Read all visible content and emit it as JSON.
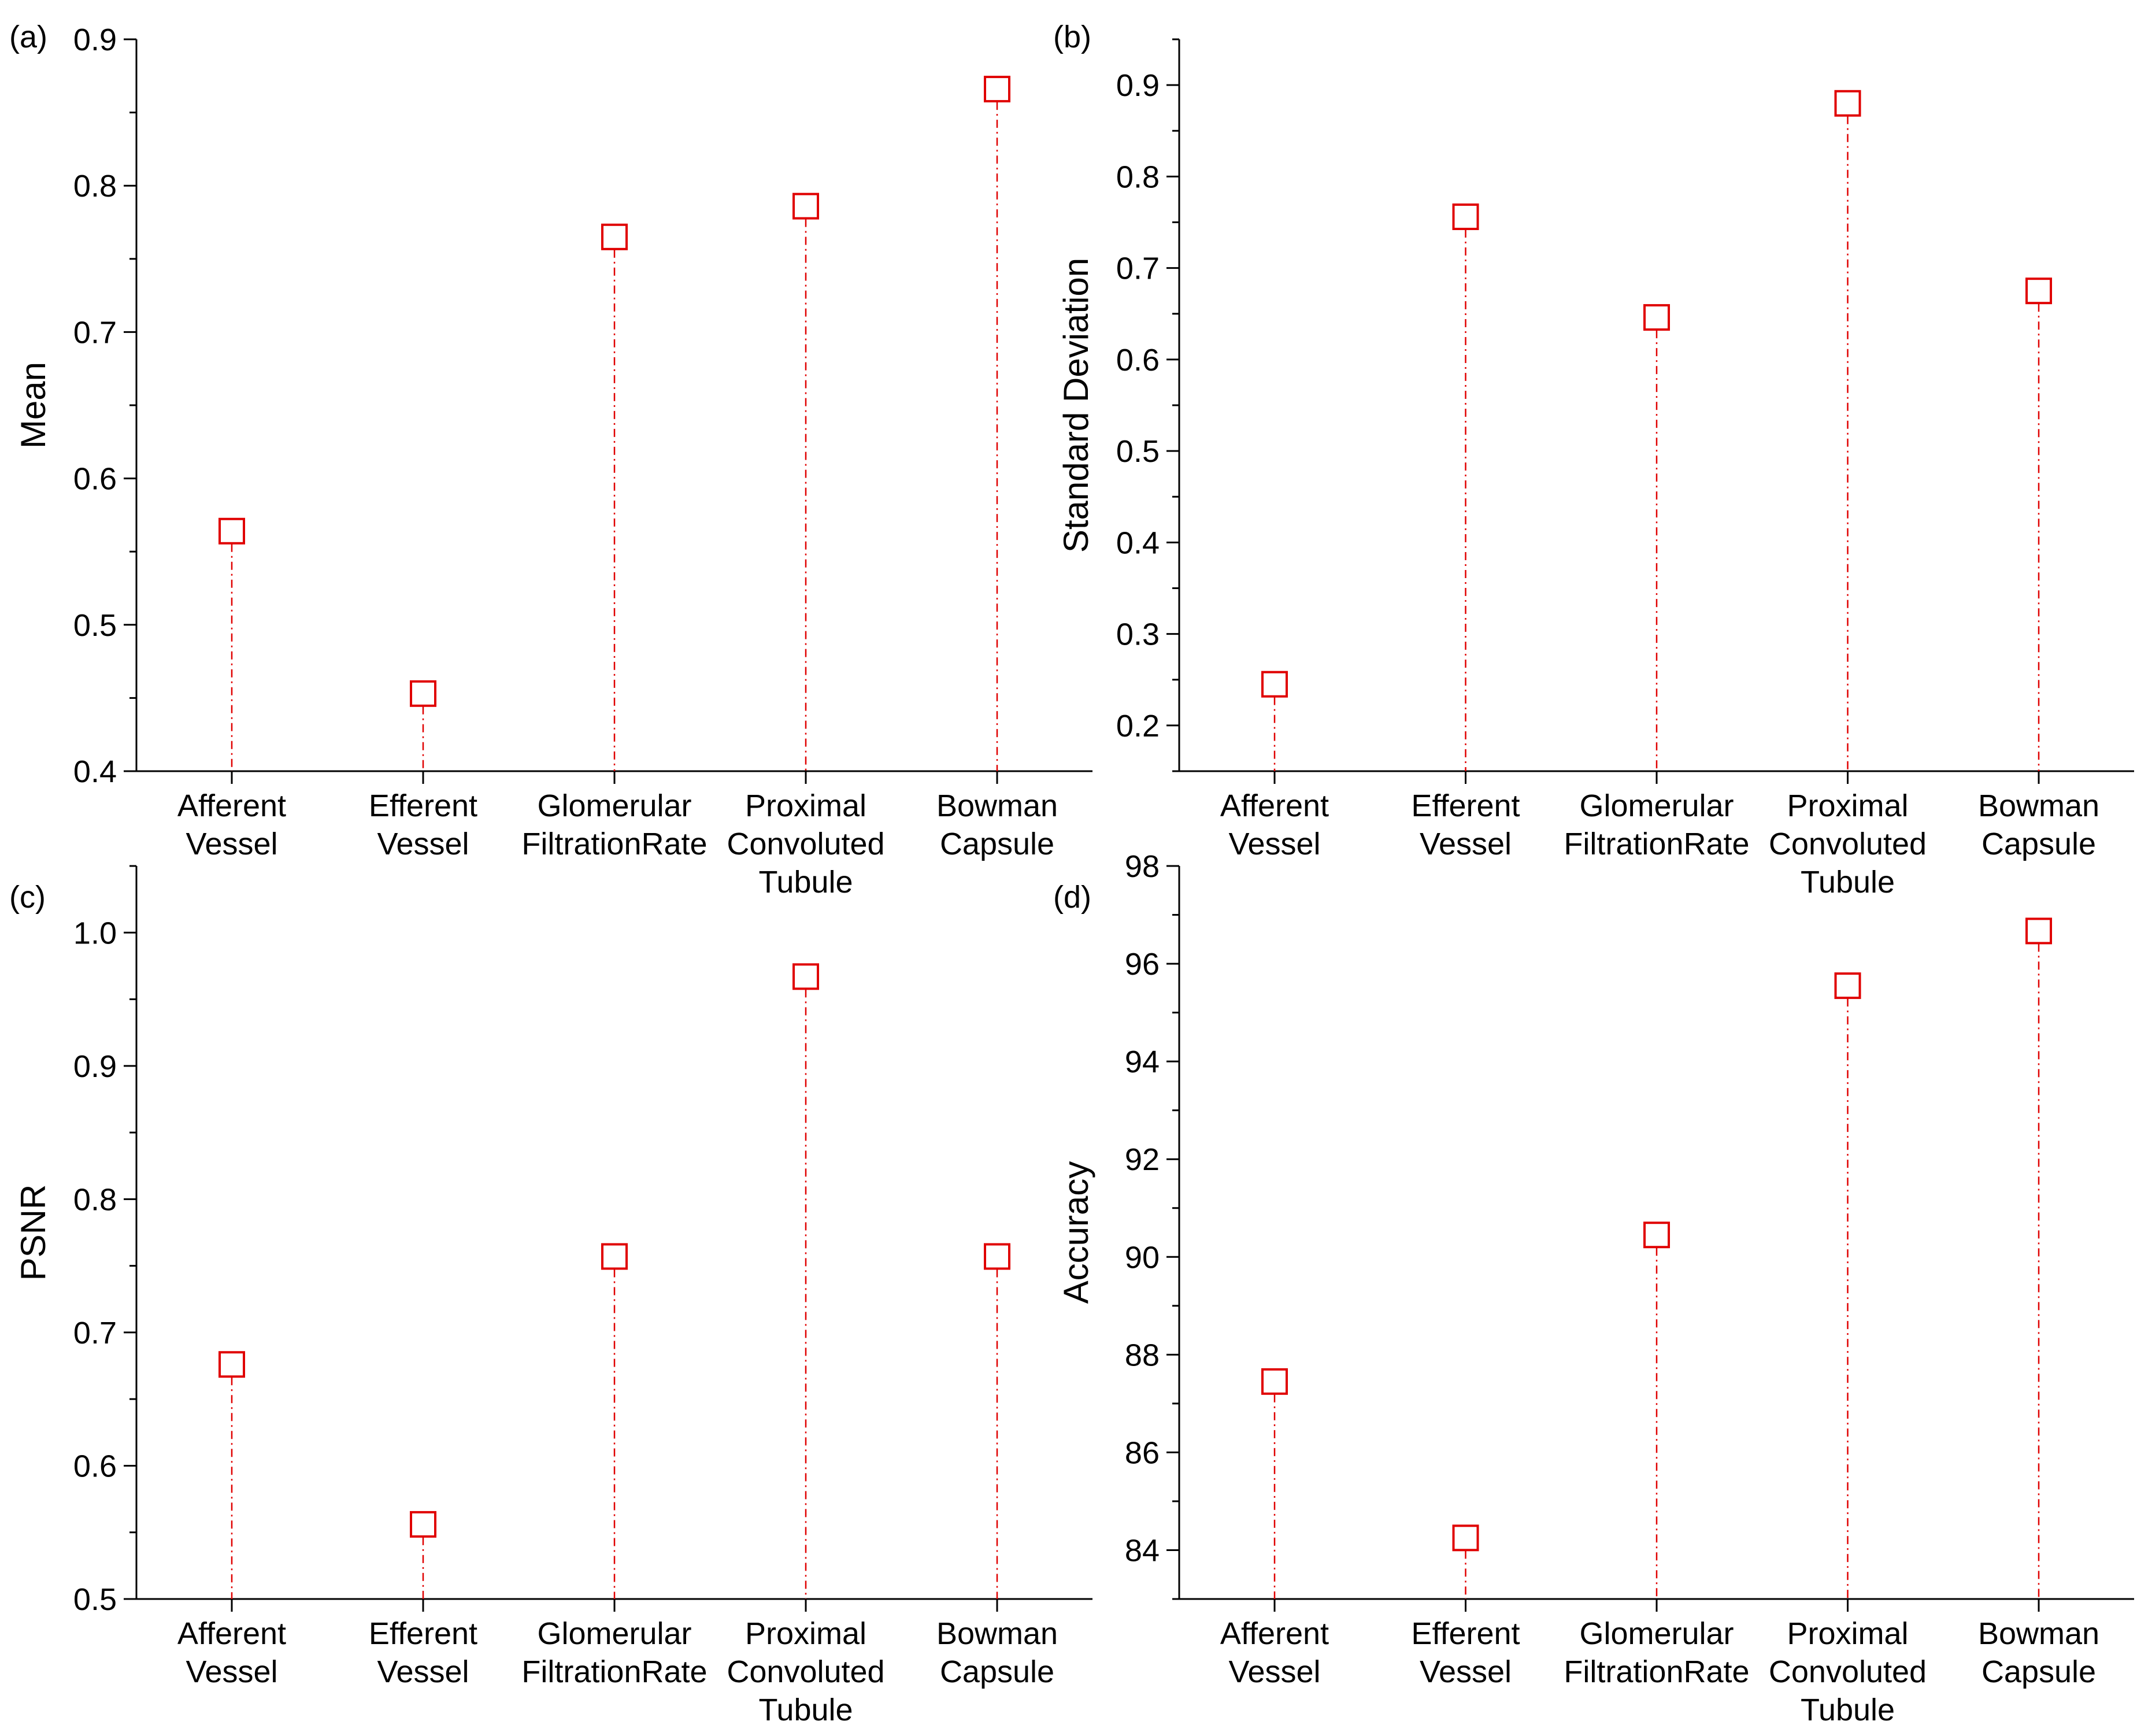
{
  "colors": {
    "marker": "#e00000",
    "axis": "#000000",
    "background": "#ffffff"
  },
  "chart_data": [
    {
      "panel_label": "(a)",
      "type": "scatter",
      "marker": "open-square",
      "drop_lines": "dash-dot",
      "title": "",
      "xlabel": "",
      "ylabel": "Mean",
      "ylim": [
        0.4,
        0.9
      ],
      "yticks": [
        0.4,
        0.5,
        0.6,
        0.7,
        0.8,
        0.9
      ],
      "ytick_labels": [
        "0.4",
        "0.5",
        "0.6",
        "0.7",
        "0.8",
        "0.9"
      ],
      "categories": [
        [
          "Afferent",
          "Vessel"
        ],
        [
          "Efferent",
          "Vessel"
        ],
        [
          "Glomerular",
          "FiltrationRate"
        ],
        [
          "Proximal",
          "Convoluted",
          "Tubule"
        ],
        [
          "Bowman",
          "Capsule"
        ]
      ],
      "values": [
        0.564,
        0.453,
        0.765,
        0.786,
        0.866
      ]
    },
    {
      "panel_label": "(b)",
      "type": "scatter",
      "marker": "open-square",
      "drop_lines": "dash-dot",
      "title": "",
      "xlabel": "",
      "ylabel": "Standard Deviation",
      "ylim": [
        0.15,
        0.95
      ],
      "yticks": [
        0.2,
        0.3,
        0.4,
        0.5,
        0.6,
        0.7,
        0.8,
        0.9
      ],
      "ytick_labels": [
        "0.2",
        "0.3",
        "0.4",
        "0.5",
        "0.6",
        "0.7",
        "0.8",
        "0.9"
      ],
      "categories": [
        [
          "Afferent",
          "Vessel"
        ],
        [
          "Efferent",
          "Vessel"
        ],
        [
          "Glomerular",
          "FiltrationRate"
        ],
        [
          "Proximal",
          "Convoluted",
          "Tubule"
        ],
        [
          "Bowman",
          "Capsule"
        ]
      ],
      "values": [
        0.245,
        0.756,
        0.646,
        0.88,
        0.675
      ]
    },
    {
      "panel_label": "(c)",
      "type": "scatter",
      "marker": "open-square",
      "drop_lines": "dash-dot",
      "title": "",
      "xlabel": "",
      "ylabel": "PSNR",
      "ylim": [
        0.5,
        1.05
      ],
      "yticks": [
        0.5,
        0.6,
        0.7,
        0.8,
        0.9,
        1.0
      ],
      "ytick_labels": [
        "0.5",
        "0.6",
        "0.7",
        "0.8",
        "0.9",
        "1.0"
      ],
      "categories": [
        [
          "Afferent",
          "Vessel"
        ],
        [
          "Efferent",
          "Vessel"
        ],
        [
          "Glomerular",
          "FiltrationRate"
        ],
        [
          "Proximal",
          "Convoluted",
          "Tubule"
        ],
        [
          "Bowman",
          "Capsule"
        ]
      ],
      "values": [
        0.676,
        0.556,
        0.757,
        0.967,
        0.757
      ]
    },
    {
      "panel_label": "(d)",
      "type": "scatter",
      "marker": "open-square",
      "drop_lines": "dash-dot",
      "title": "",
      "xlabel": "",
      "ylabel": "Accuracy",
      "ylim": [
        83,
        98
      ],
      "yticks": [
        84,
        86,
        88,
        90,
        92,
        94,
        96,
        98
      ],
      "ytick_labels": [
        "84",
        "86",
        "88",
        "90",
        "92",
        "94",
        "96",
        "98"
      ],
      "categories": [
        [
          "Afferent",
          "Vessel"
        ],
        [
          "Efferent",
          "Vessel"
        ],
        [
          "Glomerular",
          "FiltrationRate"
        ],
        [
          "Proximal",
          "Convoluted",
          "Tubule"
        ],
        [
          "Bowman",
          "Capsule"
        ]
      ],
      "values": [
        87.45,
        84.25,
        90.45,
        95.55,
        96.67
      ]
    }
  ]
}
